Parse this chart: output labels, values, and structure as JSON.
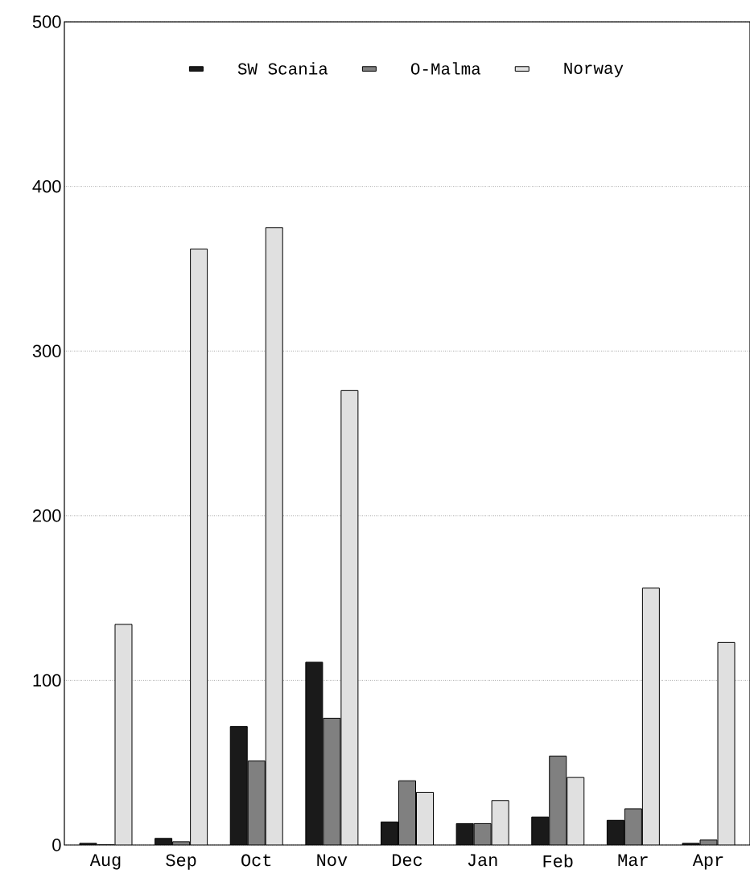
{
  "chart_data": {
    "type": "bar",
    "categories": [
      "Aug",
      "Sep",
      "Oct",
      "Nov",
      "Dec",
      "Jan",
      "Feb",
      "Mar",
      "Apr"
    ],
    "series": [
      {
        "name": "SW Scania",
        "color": "#1a1a1a",
        "values": [
          1,
          4,
          72,
          111,
          14,
          13,
          17,
          15,
          1
        ]
      },
      {
        "name": "O-Malma",
        "color": "#808080",
        "values": [
          0,
          2,
          51,
          77,
          39,
          13,
          54,
          22,
          3
        ]
      },
      {
        "name": "Norway",
        "color": "#e0e0e0",
        "values": [
          134,
          362,
          375,
          276,
          32,
          27,
          41,
          156,
          123
        ]
      }
    ],
    "ylim": [
      0,
      500
    ],
    "yticks": [
      0,
      100,
      200,
      300,
      400,
      500
    ],
    "grid": "y",
    "legend": "top"
  }
}
